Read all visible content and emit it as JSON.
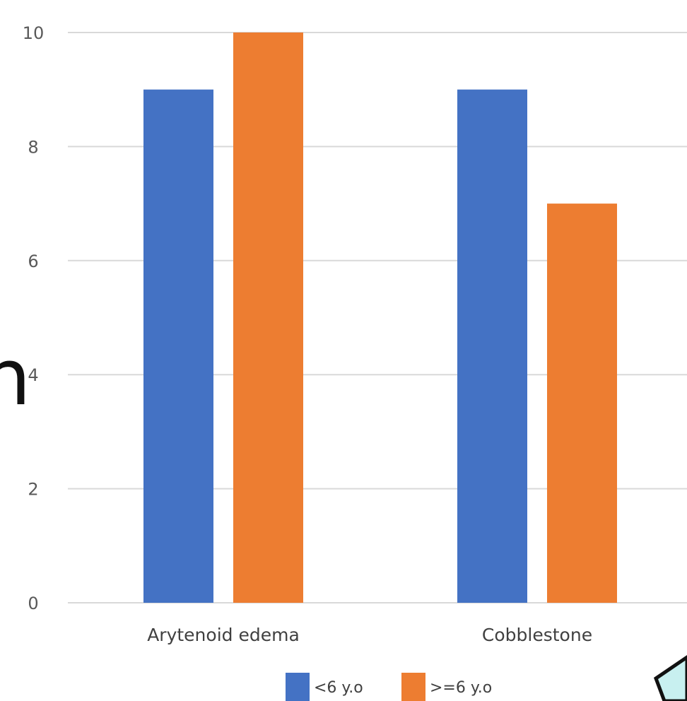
{
  "chart_data": {
    "type": "bar",
    "title": "",
    "xlabel": "",
    "ylabel": "",
    "categories": [
      "Arytenoid edema",
      "Cobblestone"
    ],
    "series": [
      {
        "name": "<6 y.o",
        "values": [
          9,
          9
        ],
        "color": "#4472c4"
      },
      {
        "name": ">=6 y.o",
        "values": [
          10,
          7
        ],
        "color": "#ed7d31"
      }
    ],
    "ylim": [
      0,
      10
    ],
    "yticks": [
      0,
      2,
      4,
      6,
      8,
      10
    ],
    "grid": true,
    "legend": "bottom-center"
  },
  "fragment": {
    "glyph": "n",
    "corner_fill": "#c8f0f0",
    "corner_stroke": "#111111"
  }
}
